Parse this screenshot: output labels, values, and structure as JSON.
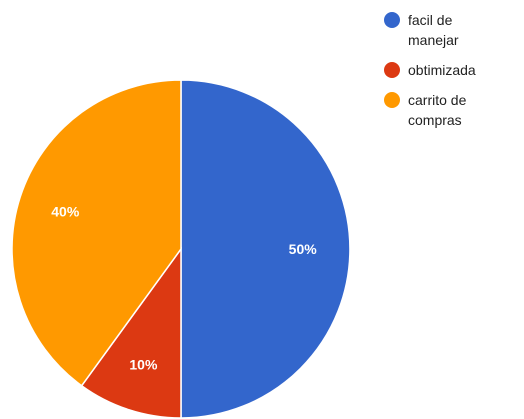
{
  "chart_data": {
    "type": "pie",
    "title": "",
    "start_angle_deg": 0,
    "direction": "clockwise",
    "legend_position": "right",
    "slices": [
      {
        "label": "facil de manejar",
        "legend_lines": [
          "facil de",
          "manejar"
        ],
        "value": 50,
        "display": "50%",
        "color": "#3366cc"
      },
      {
        "label": "obtimizada",
        "legend_lines": [
          "obtimizada"
        ],
        "value": 10,
        "display": "10%",
        "color": "#dc3912"
      },
      {
        "label": "carrito de compras",
        "legend_lines": [
          "carrito de",
          "compras"
        ],
        "value": 40,
        "display": "40%",
        "color": "#ff9900"
      }
    ]
  }
}
